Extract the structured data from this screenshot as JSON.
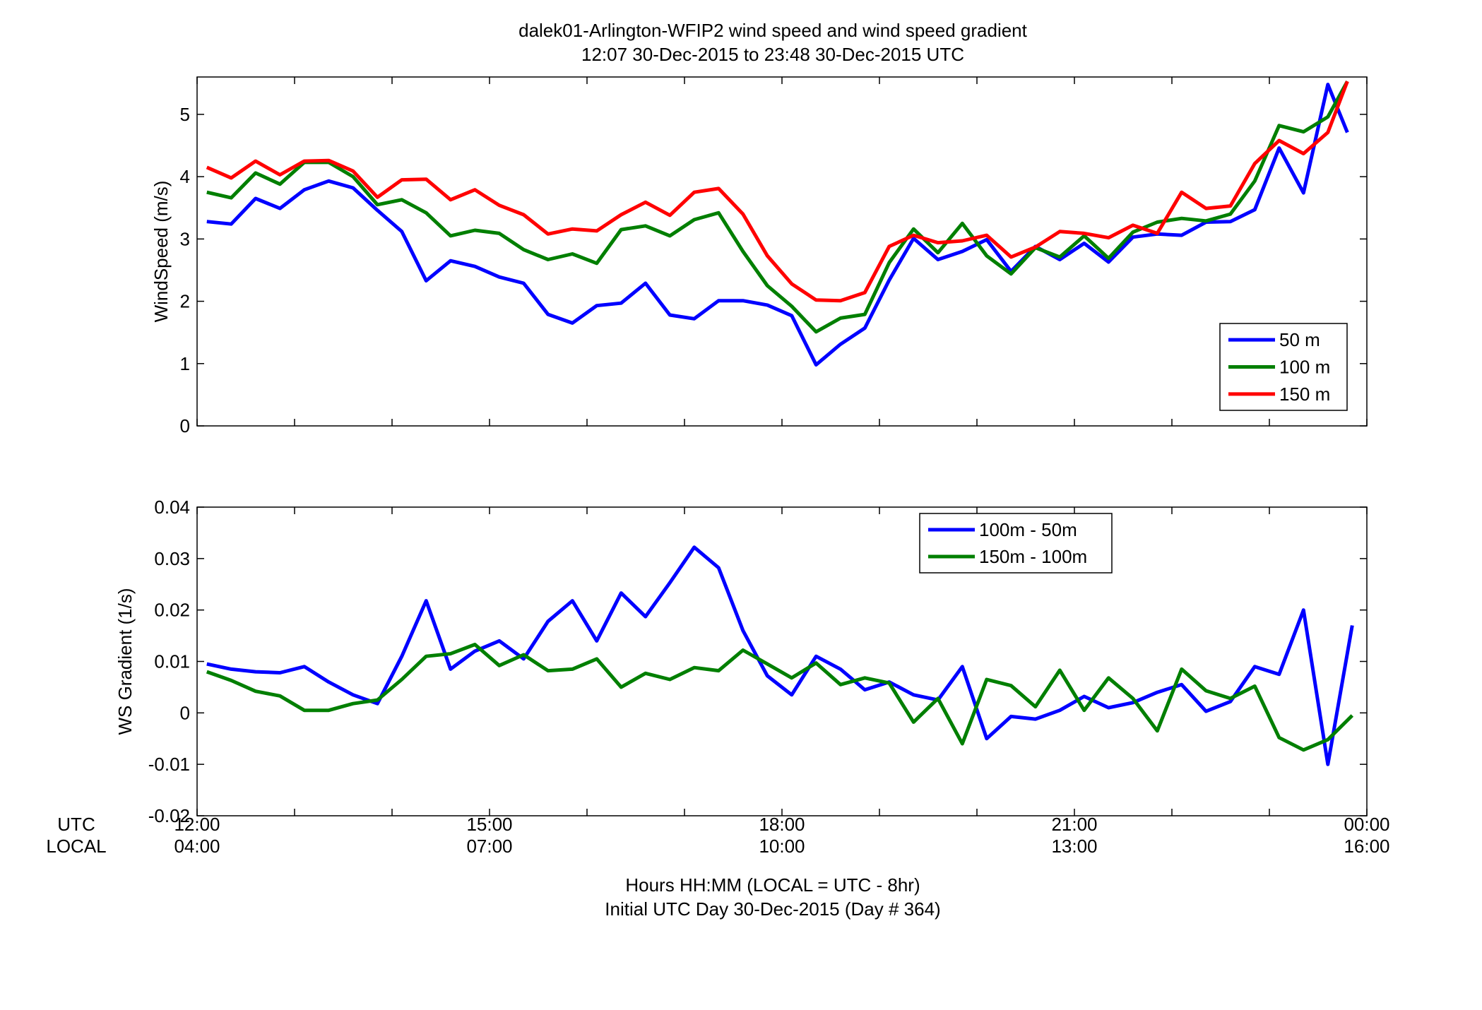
{
  "title": {
    "line1": "dalek01-Arlington-WFIP2  wind speed and wind speed gradient",
    "line2": "12:07 30-Dec-2015 to 23:48 30-Dec-2015  UTC"
  },
  "xaxis": {
    "utc_label": "UTC",
    "local_label": "LOCAL",
    "utc_ticks": [
      "12:00",
      "15:00",
      "18:00",
      "21:00",
      "00:00"
    ],
    "local_ticks": [
      "04:00",
      "07:00",
      "10:00",
      "13:00",
      "16:00"
    ],
    "xlabel_line1": "Hours HH:MM  (LOCAL = UTC - 8hr)",
    "xlabel_line2": "Initial UTC Day 30-Dec-2015 (Day # 364)"
  },
  "colors": {
    "blue": "#0000ff",
    "green": "#007f00",
    "red": "#ff0000"
  },
  "chart_data": [
    {
      "type": "line",
      "ylabel": "WindSpeed (m/s)",
      "ylim": [
        0,
        5.6
      ],
      "yticks": [
        0,
        1,
        2,
        3,
        4,
        5
      ],
      "ytick_labels": [
        "0",
        "1",
        "2",
        "3",
        "4",
        "5"
      ],
      "xlim_hours_utc": [
        12,
        24
      ],
      "grid": false,
      "legend_position": "lower-right",
      "x_hours_utc": [
        12.1,
        12.35,
        12.6,
        12.85,
        13.1,
        13.35,
        13.6,
        13.85,
        14.1,
        14.35,
        14.6,
        14.85,
        15.1,
        15.35,
        15.6,
        15.85,
        16.1,
        16.35,
        16.6,
        16.85,
        17.1,
        17.35,
        17.6,
        17.85,
        18.1,
        18.35,
        18.6,
        18.85,
        19.1,
        19.35,
        19.6,
        19.85,
        20.1,
        20.35,
        20.6,
        20.85,
        21.1,
        21.35,
        21.6,
        21.85,
        22.1,
        22.35,
        22.6,
        22.85,
        23.1,
        23.35,
        23.6,
        23.8
      ],
      "series": [
        {
          "name": "50 m",
          "color": "#0000ff",
          "values": [
            3.28,
            3.24,
            3.65,
            3.49,
            3.79,
            3.93,
            3.82,
            3.46,
            3.12,
            2.33,
            2.65,
            2.56,
            2.39,
            2.29,
            1.79,
            1.65,
            1.93,
            1.97,
            2.29,
            1.78,
            1.72,
            2.01,
            2.01,
            1.94,
            1.77,
            0.98,
            1.31,
            1.57,
            2.34,
            3.01,
            2.67,
            2.8,
            2.99,
            2.48,
            2.88,
            2.67,
            2.93,
            2.63,
            3.03,
            3.08,
            3.06,
            3.27,
            3.28,
            3.47,
            4.46,
            3.74,
            5.48,
            4.71
          ]
        },
        {
          "name": "100 m",
          "color": "#007f00",
          "values": [
            3.75,
            3.66,
            4.06,
            3.88,
            4.23,
            4.23,
            4.0,
            3.55,
            3.63,
            3.42,
            3.05,
            3.14,
            3.09,
            2.83,
            2.67,
            2.76,
            2.61,
            3.15,
            3.21,
            3.05,
            3.31,
            3.42,
            2.8,
            2.25,
            1.92,
            1.51,
            1.73,
            1.79,
            2.62,
            3.16,
            2.78,
            3.25,
            2.73,
            2.44,
            2.86,
            2.71,
            3.05,
            2.69,
            3.11,
            3.27,
            3.33,
            3.29,
            3.4,
            3.93,
            4.82,
            4.72,
            4.96,
            5.53
          ]
        },
        {
          "name": "150 m",
          "color": "#ff0000",
          "values": [
            4.15,
            3.98,
            4.25,
            4.03,
            4.25,
            4.26,
            4.09,
            3.67,
            3.95,
            3.96,
            3.63,
            3.79,
            3.54,
            3.39,
            3.08,
            3.16,
            3.13,
            3.39,
            3.59,
            3.38,
            3.75,
            3.81,
            3.4,
            2.73,
            2.28,
            2.02,
            2.01,
            2.14,
            2.88,
            3.06,
            2.94,
            2.97,
            3.06,
            2.71,
            2.87,
            3.12,
            3.09,
            3.02,
            3.22,
            3.09,
            3.75,
            3.49,
            3.53,
            4.21,
            4.58,
            4.37,
            4.71,
            5.53
          ]
        }
      ]
    },
    {
      "type": "line",
      "ylabel": "WS Gradient (1/s)",
      "ylim": [
        -0.02,
        0.04
      ],
      "yticks": [
        -0.02,
        -0.01,
        0,
        0.01,
        0.02,
        0.03,
        0.04
      ],
      "ytick_labels": [
        "-0.02",
        "-0.01",
        "0",
        "0.01",
        "0.02",
        "0.03",
        "0.04"
      ],
      "xlim_hours_utc": [
        12,
        24
      ],
      "grid": false,
      "legend_position": "top-center",
      "series": [
        {
          "name": "100m - 50m",
          "color": "#0000ff",
          "x_hours_utc": [
            12.1,
            12.35,
            12.6,
            12.85,
            13.1,
            13.35,
            13.6,
            13.85,
            14.1,
            14.35,
            14.6,
            14.85,
            15.1,
            15.35,
            15.6,
            15.85,
            16.1,
            16.35,
            16.6,
            16.85,
            17.1,
            17.35,
            17.6,
            17.85,
            18.1,
            18.35,
            18.6,
            18.85,
            19.1,
            19.35,
            19.6,
            19.85,
            20.1,
            20.35,
            20.6,
            20.85,
            21.1,
            21.35,
            21.6,
            21.85,
            22.1,
            22.35,
            22.6,
            22.85,
            23.1,
            23.35,
            23.6,
            23.85
          ],
          "values": [
            0.0095,
            0.0085,
            0.008,
            0.0078,
            0.009,
            0.006,
            0.0035,
            0.0018,
            0.011,
            0.0218,
            0.0085,
            0.012,
            0.014,
            0.0105,
            0.0178,
            0.0218,
            0.014,
            0.0233,
            0.0187,
            0.0253,
            0.0322,
            0.0282,
            0.016,
            0.0072,
            0.0035,
            0.011,
            0.0085,
            0.0045,
            0.006,
            0.0035,
            0.0025,
            0.009,
            -0.005,
            -0.0007,
            -0.0012,
            0.0005,
            0.0032,
            0.001,
            0.002,
            0.004,
            0.0055,
            0.0003,
            0.0022,
            0.009,
            0.0075,
            0.02,
            -0.01,
            0.017
          ]
        },
        {
          "name": "150m - 100m",
          "color": "#007f00",
          "x_hours_utc": [
            12.1,
            12.35,
            12.6,
            12.85,
            13.1,
            13.35,
            13.6,
            13.85,
            14.1,
            14.35,
            14.6,
            14.85,
            15.1,
            15.35,
            15.6,
            15.85,
            16.1,
            16.35,
            16.6,
            16.85,
            17.1,
            17.35,
            17.6,
            17.85,
            18.1,
            18.35,
            18.6,
            18.85,
            19.1,
            19.35,
            19.6,
            19.85,
            20.1,
            20.35,
            20.6,
            20.85,
            21.1,
            21.35,
            21.6,
            21.85,
            22.1,
            22.35,
            22.6,
            22.85,
            23.1,
            23.35,
            23.6,
            23.85
          ],
          "values": [
            0.008,
            0.0063,
            0.0042,
            0.0033,
            0.0005,
            0.0005,
            0.0018,
            0.0025,
            0.0065,
            0.011,
            0.0115,
            0.0133,
            0.0092,
            0.0113,
            0.0082,
            0.0085,
            0.0105,
            0.005,
            0.0077,
            0.0065,
            0.0088,
            0.0082,
            0.0122,
            0.0095,
            0.0068,
            0.0097,
            0.0055,
            0.0068,
            0.0058,
            -0.0018,
            0.0028,
            -0.006,
            0.0065,
            0.0053,
            0.0012,
            0.0083,
            0.0005,
            0.0068,
            0.0028,
            -0.0035,
            0.0085,
            0.0043,
            0.0028,
            0.0052,
            -0.0048,
            -0.0072,
            -0.0052,
            -0.0005
          ]
        }
      ]
    }
  ]
}
